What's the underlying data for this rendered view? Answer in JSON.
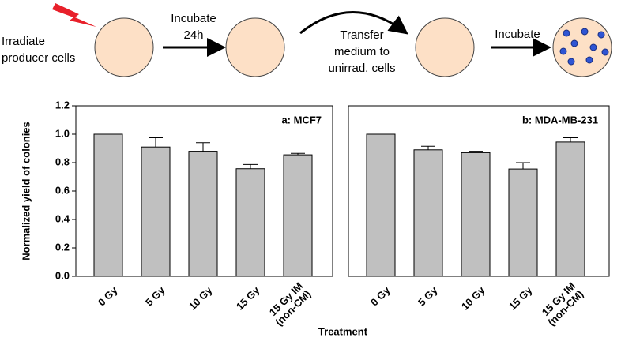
{
  "diagram": {
    "labels": [
      [
        "Irradiate",
        "producer cells"
      ],
      [
        "Incubate",
        "24h"
      ],
      [
        "Transfer",
        "medium to",
        "unirrad. cells"
      ],
      [
        "Incubate"
      ]
    ]
  },
  "xlabel": "Treatment",
  "chart_data": [
    {
      "type": "bar",
      "label": "a: MCF7",
      "ylabel": "Normalized yield of colonies",
      "categories": [
        "0 Gy",
        "5 Gy",
        "10 Gy",
        "15 Gy",
        "15 Gy IM (non-CM)"
      ],
      "values": [
        1.0,
        0.91,
        0.88,
        0.757,
        0.855
      ],
      "errors": [
        null,
        0.065,
        0.06,
        0.03,
        0.01
      ],
      "color": "#c0c0c0",
      "ylim": [
        0,
        1.2
      ],
      "yticks": [
        {
          "value": 0,
          "label": "0.0"
        },
        0.2,
        0.4,
        0.6,
        0.8,
        {
          "value": 1,
          "label": "1.0"
        },
        1.2
      ]
    },
    {
      "type": "bar",
      "label": "b: MDA-MB-231",
      "categories": [
        "0 Gy",
        "5 Gy",
        "10 Gy",
        "15 Gy",
        "15 Gy IM (non-CM)"
      ],
      "values": [
        1.0,
        0.89,
        0.87,
        0.755,
        0.945
      ],
      "errors": [
        null,
        0.025,
        0.01,
        0.045,
        0.03
      ],
      "color": "#c0c0c0",
      "ylim": [
        0,
        1.2
      ]
    }
  ]
}
